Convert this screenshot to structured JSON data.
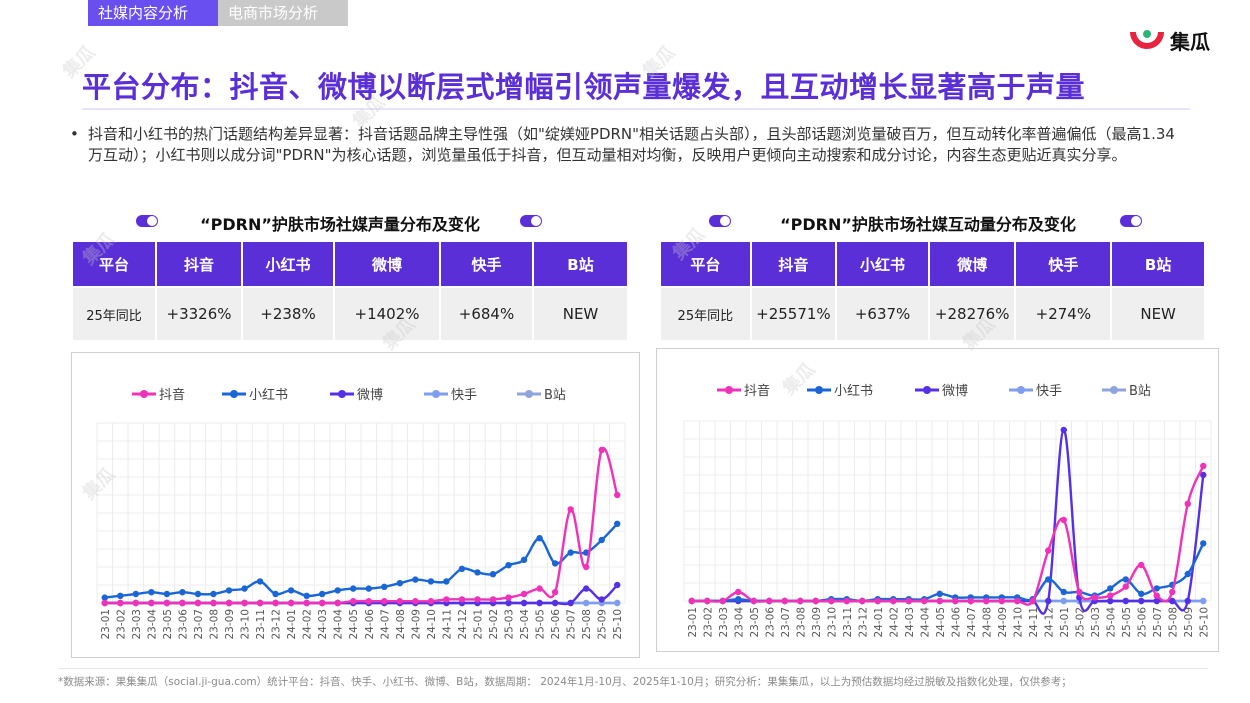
{
  "tabs": [
    {
      "label": "社媒内容分析",
      "active": true
    },
    {
      "label": "电商市场分析",
      "active": false
    }
  ],
  "logo": {
    "text": "集瓜"
  },
  "watermark": "集瓜",
  "title": "平台分布：抖音、微博以断层式增幅引领声量爆发，且互动增长显著高于声量",
  "bullet": "抖音和小红书的热门话题结构差异显著：抖音话题品牌主导性强（如\"绽媄娅PDRN\"相关话题占头部），且头部话题浏览量破百万，但互动转化率普遍偏低（最高1.34万互动）；小红书则以成分词\"PDRN\"为核心话题，浏览量虽低于抖音，但互动量相对均衡，反映用户更倾向主动搜索和成分讨论，内容生态更贴近真实分享。",
  "colors": {
    "accent": "#5b2fd8",
    "douyin": "#f032b8",
    "xiaohongshu": "#1a66d6",
    "weibo": "#5530e6",
    "kuaishou": "#7f9ef0",
    "bilibili": "#8fa4dc"
  },
  "left": {
    "title": "“PDRN”护肤市场社媒声量分布及变化",
    "headers": [
      "平台",
      "抖音",
      "小红书",
      "微博",
      "快手",
      "B站"
    ],
    "row_label": "25年同比",
    "row_values": [
      "+3326%",
      "+238%",
      "+1402%",
      "+684%",
      "NEW"
    ]
  },
  "right": {
    "title": "“PDRN”护肤市场社媒互动量分布及变化",
    "headers": [
      "平台",
      "抖音",
      "小红书",
      "微博",
      "快手",
      "B站"
    ],
    "row_label": "25年同比",
    "row_values": [
      "+25571%",
      "+637%",
      "+28276%",
      "+274%",
      "NEW"
    ]
  },
  "chart_data": [
    {
      "type": "line",
      "title": "“PDRN”护肤市场社媒声量分布及变化",
      "x": [
        "23-01",
        "23-02",
        "23-03",
        "23-04",
        "23-05",
        "23-06",
        "23-07",
        "23-08",
        "23-09",
        "23-10",
        "23-11",
        "23-12",
        "24-01",
        "24-02",
        "24-03",
        "24-04",
        "24-05",
        "24-06",
        "24-07",
        "24-08",
        "24-09",
        "24-10",
        "24-11",
        "24-12",
        "25-01",
        "25-02",
        "25-03",
        "25-04",
        "25-05",
        "25-06",
        "25-07",
        "25-08",
        "25-09",
        "25-10"
      ],
      "ylim": [
        0,
        100
      ],
      "grid": true,
      "legend": "top",
      "series": [
        {
          "name": "抖音",
          "values": [
            0,
            0,
            0,
            0,
            0,
            0,
            0,
            0,
            0,
            0,
            0,
            0,
            0,
            0,
            0,
            0,
            1,
            1,
            1,
            1,
            1,
            1,
            2,
            2,
            2,
            2,
            3,
            5,
            8,
            6,
            52,
            20,
            85,
            60
          ]
        },
        {
          "name": "小红书",
          "values": [
            3,
            4,
            5,
            6,
            5,
            6,
            5,
            5,
            7,
            8,
            12,
            5,
            7,
            4,
            5,
            7,
            8,
            8,
            9,
            11,
            13,
            12,
            12,
            19,
            17,
            16,
            21,
            24,
            36,
            22,
            28,
            28,
            35,
            44
          ]
        },
        {
          "name": "微博",
          "values": [
            0,
            0,
            0,
            0,
            0,
            0,
            0,
            0,
            0,
            0,
            0,
            0,
            0,
            0,
            0,
            0,
            0,
            0,
            0,
            0,
            0,
            0,
            0,
            0,
            0,
            0,
            0,
            0,
            0,
            0,
            0,
            8,
            2,
            10
          ]
        },
        {
          "name": "快手",
          "values": [
            0,
            0,
            0,
            0,
            0,
            0,
            0,
            0,
            0,
            0,
            0,
            0,
            0,
            0,
            0,
            0,
            0,
            0,
            0,
            0,
            0,
            0,
            0,
            0,
            0,
            0,
            0,
            0,
            0,
            0,
            0,
            0,
            0,
            0
          ]
        },
        {
          "name": "B站",
          "values": [
            0,
            0,
            0,
            0,
            0,
            0,
            0,
            0,
            0,
            0,
            0,
            0,
            0,
            0,
            0,
            0,
            0,
            0,
            0,
            0,
            0,
            0,
            0,
            0,
            0,
            0,
            0,
            0,
            0,
            0,
            0,
            0,
            0,
            0
          ]
        }
      ]
    },
    {
      "type": "line",
      "title": "“PDRN”护肤市场社媒互动量分布及变化",
      "x": [
        "23-01",
        "23-02",
        "23-03",
        "23-04",
        "23-05",
        "23-06",
        "23-07",
        "23-08",
        "23-09",
        "23-10",
        "23-11",
        "23-12",
        "24-01",
        "24-02",
        "24-03",
        "24-04",
        "24-05",
        "24-06",
        "24-07",
        "24-08",
        "24-09",
        "24-10",
        "24-11",
        "24-12",
        "25-01",
        "25-02",
        "25-03",
        "25-04",
        "25-05",
        "25-06",
        "25-07",
        "25-08",
        "25-09",
        "25-10"
      ],
      "ylim": [
        0,
        100
      ],
      "grid": true,
      "legend": "top",
      "series": [
        {
          "name": "抖音",
          "values": [
            0,
            0,
            0,
            5,
            0,
            0,
            0,
            0,
            0,
            0,
            0,
            0,
            0,
            0,
            0,
            0,
            0,
            0,
            0,
            0,
            0,
            0,
            0,
            28,
            45,
            5,
            2,
            3,
            8,
            20,
            3,
            5,
            54,
            75
          ]
        },
        {
          "name": "小红书",
          "values": [
            0,
            0,
            0,
            1,
            0,
            0,
            0,
            0,
            0,
            1,
            1,
            0,
            1,
            1,
            1,
            1,
            4,
            2,
            2,
            2,
            2,
            2,
            1,
            12,
            5,
            5,
            3,
            7,
            12,
            4,
            7,
            9,
            15,
            32
          ]
        },
        {
          "name": "微博",
          "values": [
            0,
            0,
            0,
            0,
            0,
            0,
            0,
            0,
            0,
            0,
            0,
            0,
            0,
            0,
            0,
            0,
            0,
            0,
            0,
            0,
            0,
            0,
            0,
            0,
            95,
            2,
            0,
            0,
            0,
            0,
            0,
            0,
            0,
            70
          ]
        },
        {
          "name": "快手",
          "values": [
            0,
            0,
            0,
            0,
            0,
            0,
            0,
            0,
            0,
            0,
            0,
            0,
            0,
            0,
            0,
            0,
            0,
            0,
            0,
            0,
            0,
            0,
            0,
            0,
            0,
            0,
            0,
            0,
            0,
            0,
            0,
            0,
            0,
            0
          ]
        },
        {
          "name": "B站",
          "values": [
            0,
            0,
            0,
            0,
            0,
            0,
            0,
            0,
            0,
            0,
            0,
            0,
            0,
            0,
            0,
            0,
            0,
            0,
            0,
            0,
            0,
            0,
            0,
            0,
            0,
            0,
            0,
            0,
            0,
            0,
            0,
            0,
            0,
            0
          ]
        }
      ]
    }
  ],
  "footer": "*数据来源：果集集瓜（social.ji-gua.com）统计平台：抖音、快手、小红书、微博、B站，数据周期： 2024年1月-10月、2025年1-10月；研究分析：果集集瓜，以上为预估数据均经过脱敏及指数化处理，仅供参考；"
}
